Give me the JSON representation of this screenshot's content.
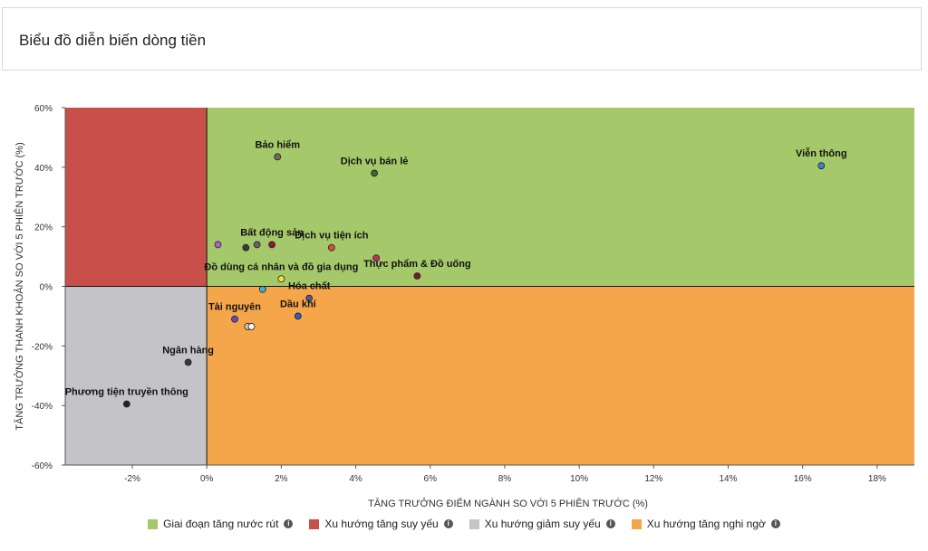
{
  "header": {
    "title": "Biểu đồ diễn biến dòng tiền"
  },
  "chart_data": {
    "type": "scatter",
    "title": "",
    "xlabel": "TĂNG TRƯỞNG ĐIỂM NGÀNH SO VỚI 5 PHIÊN TRƯỚC (%)",
    "ylabel": "TĂNG TRƯỞNG THANH KHOẢN SO VỚI 5 PHIÊN TRƯỚC (%)",
    "xlim": [
      -3.8,
      19
    ],
    "ylim": [
      -60,
      60
    ],
    "x_ticks": [
      -2,
      0,
      2,
      4,
      6,
      8,
      10,
      12,
      14,
      16,
      18
    ],
    "x_tick_labels": [
      "-2%",
      "0%",
      "2%",
      "4%",
      "6%",
      "8%",
      "10%",
      "12%",
      "14%",
      "16%",
      "18%"
    ],
    "y_ticks": [
      -60,
      -40,
      -20,
      0,
      20,
      40,
      60
    ],
    "y_tick_labels": [
      "-60%",
      "-40%",
      "-20%",
      "0%",
      "20%",
      "40%",
      "60%"
    ],
    "grid": false,
    "quadrants": [
      {
        "name": "Giai đoạn tăng nước rút",
        "color": "#a5c96a",
        "x_sign": "positive",
        "y_sign": "positive"
      },
      {
        "name": "Xu hướng tăng suy yếu",
        "color": "#c9504a",
        "x_sign": "negative",
        "y_sign": "positive"
      },
      {
        "name": "Xu hướng giảm suy yếu",
        "color": "#c4c4c8",
        "x_sign": "negative",
        "y_sign": "negative"
      },
      {
        "name": "Xu hướng tăng nghi ngờ",
        "color": "#f6a64a",
        "x_sign": "positive",
        "y_sign": "negative"
      }
    ],
    "points": [
      {
        "label": "Viễn thông",
        "x": 16.5,
        "y": 40.5,
        "color": "#3f7fd1"
      },
      {
        "label": "Bảo hiểm",
        "x": 1.9,
        "y": 43.5,
        "color": "#7a6a50"
      },
      {
        "label": "Dịch vụ bán lẻ",
        "x": 4.5,
        "y": 38,
        "color": "#2f6a2f"
      },
      {
        "label": "Bất động sản",
        "x": 1.75,
        "y": 14,
        "color": "#8b1a3a"
      },
      {
        "label": "",
        "x": 0.3,
        "y": 14,
        "color": "#b060d0"
      },
      {
        "label": "",
        "x": 1.05,
        "y": 13,
        "color": "#3a3a3a"
      },
      {
        "label": "",
        "x": 1.35,
        "y": 14,
        "color": "#666666"
      },
      {
        "label": "Dịch vụ tiện ích",
        "x": 3.35,
        "y": 13,
        "color": "#e04a3a"
      },
      {
        "label": "",
        "x": 4.55,
        "y": 9.5,
        "color": "#c03060"
      },
      {
        "label": "Thực phẩm & Đồ uống",
        "x": 5.65,
        "y": 3.5,
        "color": "#7a1a2a"
      },
      {
        "label": "Đồ dùng cá nhân và đồ gia dụng",
        "x": 2.0,
        "y": 2.5,
        "color": "#f0e040"
      },
      {
        "label": "",
        "x": 1.5,
        "y": -1,
        "color": "#40b0d0"
      },
      {
        "label": "Hóa chất",
        "x": 2.75,
        "y": -4,
        "color": "#4a5aa0"
      },
      {
        "label": "Dầu khí",
        "x": 2.45,
        "y": -10,
        "color": "#2a60c0"
      },
      {
        "label": "Tài nguyên",
        "x": 0.75,
        "y": -11,
        "color": "#6a4ac0"
      },
      {
        "label": "",
        "x": 1.1,
        "y": -13.5,
        "color": "#e6c8b0"
      },
      {
        "label": "",
        "x": 1.2,
        "y": -13.5,
        "color": "#f8f8f8"
      },
      {
        "label": "Ngân hàng",
        "x": -0.5,
        "y": -25.5,
        "color": "#3a3a3a"
      },
      {
        "label": "Phương tiện truyền thông",
        "x": -2.15,
        "y": -39.5,
        "color": "#222222"
      }
    ]
  },
  "legend": {
    "items": [
      {
        "label": "Giai đoạn tăng nước rút",
        "color": "#a5c96a",
        "icon": "info-icon"
      },
      {
        "label": "Xu hướng tăng suy yếu",
        "color": "#c9504a",
        "icon": "info-icon"
      },
      {
        "label": "Xu hướng giảm suy yếu",
        "color": "#c4c4c8",
        "icon": "info-icon"
      },
      {
        "label": "Xu hướng tăng nghi ngờ",
        "color": "#f6a64a",
        "icon": "info-icon"
      }
    ]
  }
}
